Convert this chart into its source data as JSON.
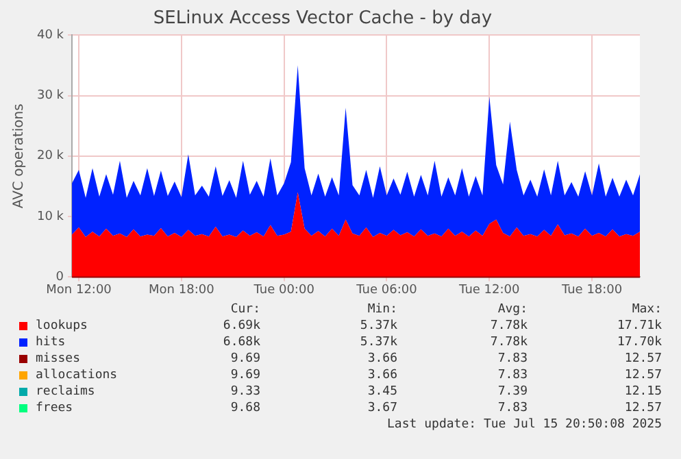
{
  "chart_data": {
    "type": "area",
    "title": "SELinux Access Vector Cache - by day",
    "ylabel": "AVC operations",
    "stacked": true,
    "grid": true,
    "legend": "bottom",
    "x": [
      "2025-07-14T11:36",
      "2025-07-14T12:00",
      "2025-07-14T12:24",
      "2025-07-14T12:48",
      "2025-07-14T13:12",
      "2025-07-14T13:36",
      "2025-07-14T14:00",
      "2025-07-14T14:24",
      "2025-07-14T14:48",
      "2025-07-14T15:12",
      "2025-07-14T15:36",
      "2025-07-14T16:00",
      "2025-07-14T16:24",
      "2025-07-14T16:48",
      "2025-07-14T17:12",
      "2025-07-14T17:36",
      "2025-07-14T18:00",
      "2025-07-14T18:24",
      "2025-07-14T18:48",
      "2025-07-14T19:12",
      "2025-07-14T19:36",
      "2025-07-14T20:00",
      "2025-07-14T20:24",
      "2025-07-14T20:48",
      "2025-07-14T21:12",
      "2025-07-14T21:36",
      "2025-07-14T22:00",
      "2025-07-14T22:24",
      "2025-07-14T22:48",
      "2025-07-14T23:12",
      "2025-07-14T23:36",
      "2025-07-15T00:00",
      "2025-07-15T00:24",
      "2025-07-15T00:48",
      "2025-07-15T01:12",
      "2025-07-15T01:36",
      "2025-07-15T02:00",
      "2025-07-15T02:24",
      "2025-07-15T02:48",
      "2025-07-15T03:12",
      "2025-07-15T03:36",
      "2025-07-15T04:00",
      "2025-07-15T04:24",
      "2025-07-15T04:48",
      "2025-07-15T05:12",
      "2025-07-15T05:36",
      "2025-07-15T06:00",
      "2025-07-15T06:24",
      "2025-07-15T06:48",
      "2025-07-15T07:12",
      "2025-07-15T07:36",
      "2025-07-15T08:00",
      "2025-07-15T08:24",
      "2025-07-15T08:48",
      "2025-07-15T09:12",
      "2025-07-15T09:36",
      "2025-07-15T10:00",
      "2025-07-15T10:24",
      "2025-07-15T10:48",
      "2025-07-15T11:12",
      "2025-07-15T11:36",
      "2025-07-15T12:00",
      "2025-07-15T12:24",
      "2025-07-15T12:48",
      "2025-07-15T13:12",
      "2025-07-15T13:36",
      "2025-07-15T14:00",
      "2025-07-15T14:24",
      "2025-07-15T14:48",
      "2025-07-15T15:12",
      "2025-07-15T15:36",
      "2025-07-15T16:00",
      "2025-07-15T16:24",
      "2025-07-15T16:48",
      "2025-07-15T17:12",
      "2025-07-15T17:36",
      "2025-07-15T18:00",
      "2025-07-15T18:24",
      "2025-07-15T18:48",
      "2025-07-15T19:12",
      "2025-07-15T19:36",
      "2025-07-15T20:00",
      "2025-07-15T20:24",
      "2025-07-15T20:48"
    ],
    "xlim": [
      "2025-07-14T11:36",
      "2025-07-15T20:48"
    ],
    "xticks": [
      {
        "value": "2025-07-14T12:00",
        "label": "Mon 12:00"
      },
      {
        "value": "2025-07-14T18:00",
        "label": "Mon 18:00"
      },
      {
        "value": "2025-07-15T00:00",
        "label": "Tue 00:00"
      },
      {
        "value": "2025-07-15T06:00",
        "label": "Tue 06:00"
      },
      {
        "value": "2025-07-15T12:00",
        "label": "Tue 12:00"
      },
      {
        "value": "2025-07-15T18:00",
        "label": "Tue 18:00"
      }
    ],
    "ylim": [
      0,
      40000
    ],
    "yticks": [
      {
        "value": 0,
        "label": "0"
      },
      {
        "value": 10000,
        "label": "10 k"
      },
      {
        "value": 20000,
        "label": "20 k"
      },
      {
        "value": 30000,
        "label": "30 k"
      },
      {
        "value": 40000,
        "label": "40 k"
      }
    ],
    "series": [
      {
        "name": "lookups",
        "color": "#ff0000",
        "values": [
          7000,
          8200,
          6600,
          7500,
          6700,
          8000,
          6800,
          7200,
          6600,
          7900,
          6700,
          7000,
          6800,
          8100,
          6700,
          7300,
          6600,
          7800,
          6800,
          7100,
          6700,
          8300,
          6700,
          7000,
          6600,
          7700,
          6800,
          7400,
          6700,
          8600,
          6800,
          7000,
          7500,
          14000,
          8000,
          6800,
          7600,
          6700,
          8000,
          6800,
          9500,
          7200,
          6800,
          8200,
          6600,
          7300,
          6800,
          7800,
          6900,
          7400,
          6700,
          7900,
          6800,
          7200,
          6700,
          8000,
          6800,
          7500,
          6700,
          7700,
          6800,
          8800,
          9500,
          7300,
          6700,
          8200,
          6800,
          7100,
          6700,
          7800,
          6800,
          8700,
          6900,
          7200,
          6700,
          8000,
          6800,
          7300,
          6700,
          7900,
          6700,
          7100,
          6800,
          7500
        ]
      },
      {
        "name": "hits",
        "color": "#0022ff",
        "values": [
          8500,
          9500,
          6500,
          10500,
          6600,
          9000,
          6800,
          12000,
          6500,
          8000,
          6800,
          11000,
          6600,
          9500,
          6700,
          8500,
          6600,
          12500,
          6700,
          8000,
          6600,
          10000,
          6700,
          9000,
          6500,
          11500,
          6800,
          8500,
          6600,
          11000,
          6700,
          8500,
          11500,
          21000,
          10000,
          6700,
          9500,
          6600,
          8500,
          6700,
          18500,
          8000,
          6700,
          9500,
          6500,
          11000,
          6700,
          8500,
          6700,
          10000,
          6600,
          9000,
          6700,
          12000,
          6600,
          8500,
          6700,
          10500,
          6600,
          9000,
          6700,
          21000,
          9000,
          8000,
          19000,
          9500,
          6700,
          9000,
          6600,
          10000,
          6700,
          10500,
          6600,
          8500,
          6600,
          9500,
          6700,
          11500,
          6600,
          8500,
          6600,
          9000,
          6700,
          9500
        ]
      },
      {
        "name": "misses",
        "type": "line",
        "color": "#990000",
        "values": [
          0,
          0,
          0,
          0,
          0,
          0,
          0,
          0,
          0,
          0,
          0,
          0,
          0,
          0,
          0,
          0,
          0,
          0,
          0,
          0,
          0,
          0,
          0,
          0,
          0,
          0,
          0,
          0,
          0,
          0,
          0,
          0,
          0,
          0,
          0,
          0,
          0,
          0,
          0,
          0,
          0,
          0,
          0,
          0,
          0,
          0,
          0,
          0,
          0,
          0,
          0,
          0,
          0,
          0,
          0,
          0,
          0,
          0,
          0,
          0,
          0,
          0,
          0,
          0,
          0,
          0,
          0,
          0,
          0,
          0,
          0,
          0,
          0,
          0,
          0,
          0,
          0,
          0,
          0,
          0,
          0,
          0,
          0,
          0
        ]
      },
      {
        "name": "allocations",
        "type": "line",
        "color": "#ffa500",
        "values": [
          null,
          null,
          null,
          null,
          null,
          null,
          null,
          null,
          null,
          null,
          null,
          null,
          null,
          null,
          null,
          null,
          null,
          null,
          null,
          null,
          null,
          null,
          null,
          null,
          null,
          null,
          null,
          null,
          null,
          null,
          null,
          null,
          null,
          null,
          null,
          null,
          null,
          null,
          null,
          null,
          null,
          null,
          null,
          null,
          null,
          null,
          null,
          null,
          null,
          null,
          null,
          null,
          null,
          null,
          null,
          null,
          null,
          null,
          null,
          null,
          null,
          null,
          null,
          null,
          null,
          null,
          null,
          null,
          null,
          null,
          null,
          null,
          null,
          null,
          null,
          null,
          null,
          null,
          null,
          null,
          null,
          null,
          null,
          null
        ]
      },
      {
        "name": "reclaims",
        "type": "line",
        "color": "#00aaaa",
        "values": [
          null,
          null,
          null,
          null,
          null,
          null,
          null,
          null,
          null,
          null,
          null,
          null,
          null,
          null,
          null,
          null,
          null,
          null,
          null,
          null,
          null,
          null,
          null,
          null,
          null,
          null,
          null,
          null,
          null,
          null,
          null,
          null,
          null,
          null,
          null,
          null,
          null,
          null,
          null,
          null,
          null,
          null,
          null,
          null,
          null,
          null,
          null,
          null,
          null,
          null,
          null,
          null,
          null,
          null,
          null,
          null,
          null,
          null,
          null,
          null,
          null,
          null,
          null,
          null,
          null,
          null,
          null,
          null,
          null,
          null,
          null,
          null,
          null,
          null,
          null,
          null,
          null,
          null,
          null,
          null,
          null,
          null,
          null,
          null
        ]
      },
      {
        "name": "frees",
        "type": "line",
        "color": "#00ff7f",
        "values": [
          null,
          null,
          null,
          null,
          null,
          null,
          null,
          null,
          null,
          null,
          null,
          null,
          null,
          null,
          null,
          null,
          null,
          null,
          null,
          null,
          null,
          null,
          null,
          null,
          null,
          null,
          null,
          null,
          null,
          null,
          null,
          null,
          null,
          null,
          null,
          null,
          null,
          null,
          null,
          null,
          null,
          null,
          null,
          null,
          null,
          null,
          null,
          null,
          null,
          null,
          null,
          null,
          null,
          null,
          null,
          null,
          null,
          null,
          null,
          null,
          null,
          null,
          null,
          null,
          null,
          null,
          null,
          null,
          null,
          null,
          null,
          null,
          null,
          null,
          null,
          null,
          null,
          null,
          null,
          null,
          null,
          null,
          null,
          null
        ]
      }
    ],
    "annotations": [
      "Cur:",
      "Min:",
      "Avg:",
      "Max:",
      "6.69k",
      "5.37k",
      "7.78k",
      "17.71k",
      "6.68k",
      "5.37k",
      "7.78k",
      "17.70k",
      "9.69",
      "3.66",
      "7.83",
      "12.57",
      "9.69",
      "3.66",
      "7.83",
      "12.57",
      "9.33",
      "3.45",
      "7.39",
      "12.15",
      "9.68",
      "3.67",
      "7.83",
      "12.57",
      "Last update: Tue Jul 15 20:50:08 2025"
    ]
  }
}
